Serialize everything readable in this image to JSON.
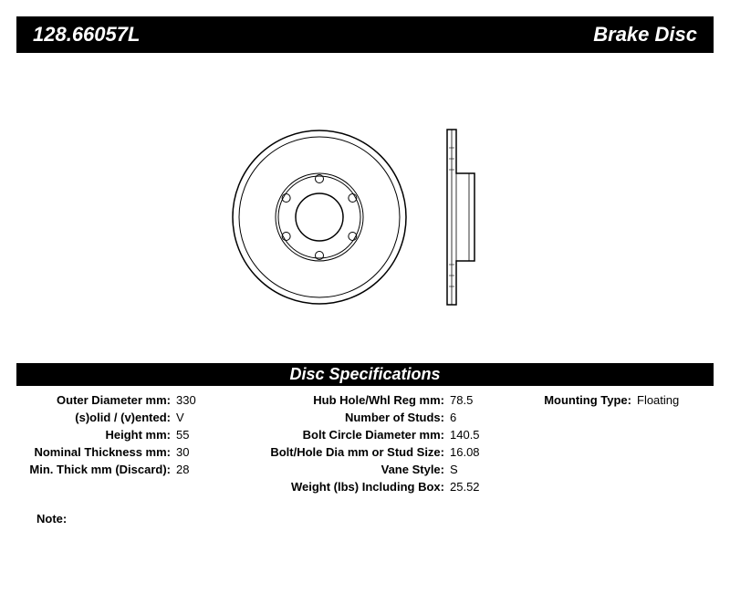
{
  "header": {
    "part_number": "128.66057L",
    "product_name": "Brake Disc"
  },
  "spec_header": "Disc Specifications",
  "specs": {
    "col1": [
      {
        "label": "Outer Diameter mm:",
        "value": "330"
      },
      {
        "label": "(s)olid / (v)ented:",
        "value": "V"
      },
      {
        "label": "Height mm:",
        "value": "55"
      },
      {
        "label": "Nominal Thickness mm:",
        "value": "30"
      },
      {
        "label": "Min. Thick mm (Discard):",
        "value": "28"
      }
    ],
    "col2": [
      {
        "label": "Hub Hole/Whl Reg mm:",
        "value": "78.5"
      },
      {
        "label": "Number of Studs:",
        "value": "6"
      },
      {
        "label": "Bolt Circle Diameter mm:",
        "value": "140.5"
      },
      {
        "label": "Bolt/Hole Dia mm or Stud Size:",
        "value": "16.08"
      },
      {
        "label": "Vane Style:",
        "value": "S"
      },
      {
        "label": "Weight (lbs) Including Box:",
        "value": "25.52"
      }
    ],
    "col3": [
      {
        "label": "Mounting Type:",
        "value": "Floating"
      }
    ]
  },
  "note_label": "Note:",
  "diagram": {
    "front": {
      "outer_radius": 95,
      "friction_outer_radius": 88,
      "friction_inner_radius": 48,
      "hub_radius": 26,
      "bolt_circle_radius": 42,
      "bolt_hole_radius": 4.5,
      "num_bolts": 6,
      "stroke_color": "#000000",
      "stroke_width": 1.5,
      "bg": "#ffffff"
    },
    "side": {
      "width": 30,
      "height": 192,
      "flange_w": 12,
      "flange_h": 96,
      "stroke_color": "#000000",
      "stroke_width": 1.5
    }
  }
}
